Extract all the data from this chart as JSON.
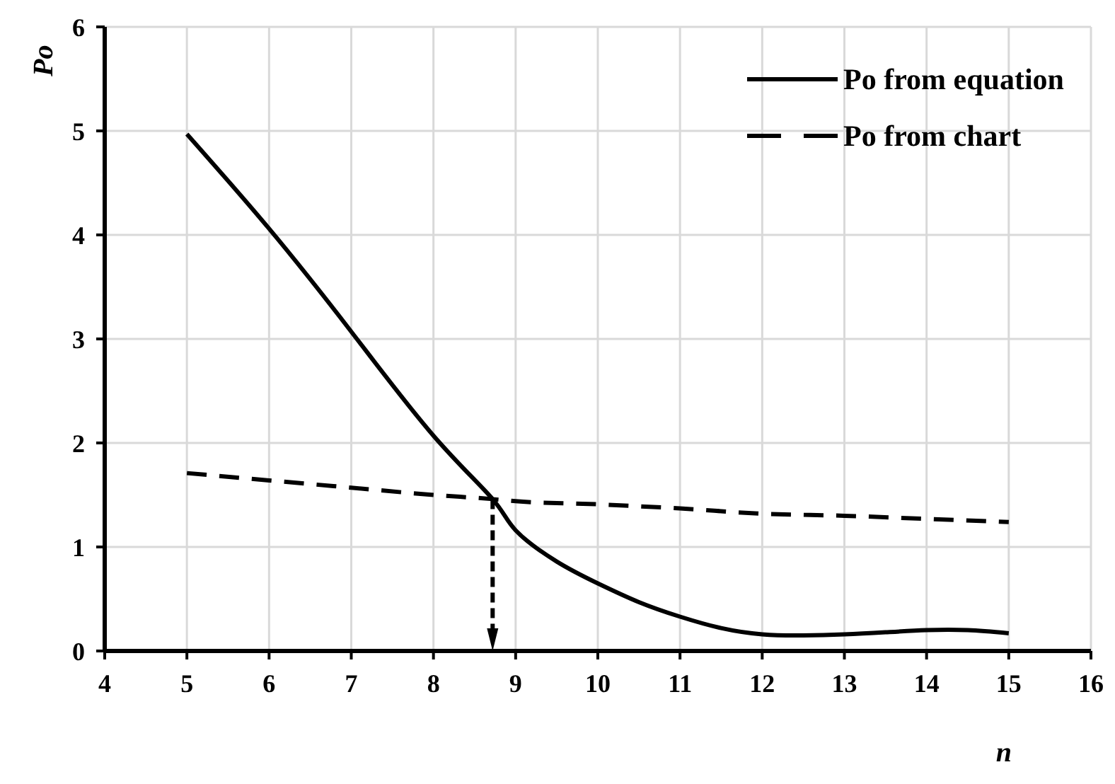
{
  "chart_data": {
    "type": "line",
    "xlabel": "n",
    "ylabel": "Po",
    "xlim": [
      4,
      16
    ],
    "xticks": [
      4,
      5,
      6,
      7,
      8,
      9,
      10,
      11,
      12,
      13,
      14,
      15,
      16
    ],
    "ylim": [
      0,
      6
    ],
    "yticks": [
      0,
      1,
      2,
      3,
      4,
      5,
      6
    ],
    "grid": true,
    "legend": "top right",
    "marker": "none",
    "series": [
      {
        "name": "Po from equation",
        "color": "#000000",
        "line_style": "solid",
        "x": [
          5,
          6,
          7,
          8,
          8.72,
          9,
          9.5,
          10,
          10.5,
          11,
          11.5,
          12,
          12.5,
          13,
          13.5,
          14,
          14.5,
          15
        ],
        "values": [
          4.97,
          4.06,
          3.07,
          2.07,
          1.46,
          1.16,
          0.86,
          0.65,
          0.47,
          0.33,
          0.22,
          0.16,
          0.15,
          0.16,
          0.18,
          0.2,
          0.2,
          0.17
        ]
      },
      {
        "name": "Po from chart",
        "color": "#000000",
        "line_style": "dashed",
        "x": [
          5,
          6,
          7,
          8,
          8.72,
          9,
          10,
          11,
          12,
          13,
          14,
          15
        ],
        "values": [
          1.71,
          1.64,
          1.57,
          1.5,
          1.46,
          1.44,
          1.41,
          1.37,
          1.32,
          1.3,
          1.27,
          1.24
        ]
      }
    ]
  }
}
